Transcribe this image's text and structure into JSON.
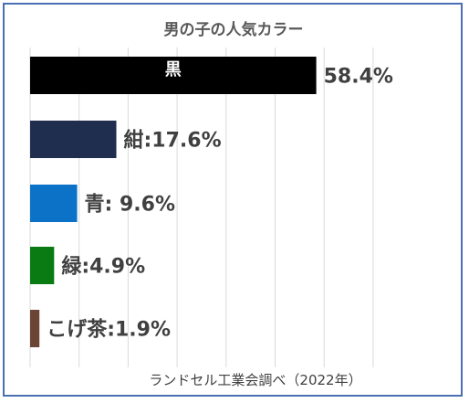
{
  "chart_data": {
    "type": "bar",
    "orientation": "horizontal",
    "title": "男の子の人気カラー",
    "source": "ランドセル工業会調べ（2022年）",
    "categories": [
      "黒",
      "紺",
      "青",
      "緑",
      "こげ茶"
    ],
    "values": [
      58.4,
      17.6,
      9.6,
      4.9,
      1.9
    ],
    "colors": [
      "#000000",
      "#1f2d4f",
      "#0b72c7",
      "#0a7a12",
      "#6b4436"
    ],
    "labels": [
      "58.4%",
      "紺:17.6%",
      "青: 9.6%",
      "緑:4.9%",
      "こげ茶:1.9%"
    ],
    "inbar_labels": [
      "黒",
      "",
      "",
      "",
      ""
    ],
    "xlim": [
      0,
      70
    ],
    "grid": true,
    "xlabel": "",
    "ylabel": ""
  }
}
